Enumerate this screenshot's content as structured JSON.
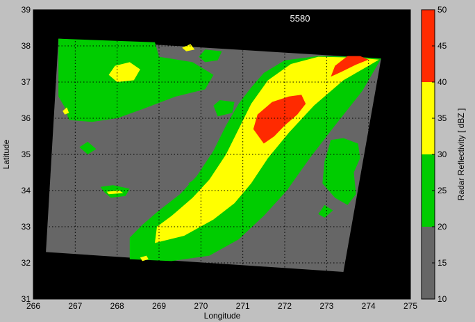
{
  "figure": {
    "background": "#c0c0c0"
  },
  "chart_data": {
    "type": "heatmap",
    "title": "5580",
    "xlabel": "Longitude",
    "ylabel": "Latitude",
    "xlim": [
      266,
      275
    ],
    "ylim": [
      31,
      39
    ],
    "xticks": [
      "266",
      "267",
      "268",
      "269",
      "270",
      "271",
      "272",
      "273",
      "274",
      "275"
    ],
    "yticks": [
      "31",
      "32",
      "33",
      "34",
      "35",
      "36",
      "37",
      "38",
      "39"
    ],
    "grid": true,
    "plot_background": "#000000",
    "domain_color": "#666666",
    "domain_corners": [
      [
        266.6,
        38.2
      ],
      [
        274.3,
        37.65
      ],
      [
        273.4,
        31.75
      ],
      [
        266.3,
        32.3
      ]
    ],
    "levels": [
      {
        "range": [
          10,
          20
        ],
        "color": "#666666"
      },
      {
        "range": [
          20,
          30
        ],
        "color": "#00cc00"
      },
      {
        "range": [
          30,
          40
        ],
        "color": "#ffff00"
      },
      {
        "range": [
          40,
          50
        ],
        "color": "#ff2a00"
      }
    ],
    "colorbar": {
      "label": "Radar Reflectivity  [ dBZ ]",
      "ticks": [
        "10",
        "15",
        "20",
        "25",
        "30",
        "35",
        "40",
        "45",
        "50"
      ],
      "range": [
        10,
        50
      ]
    },
    "regions": [
      {
        "level": 20,
        "points": [
          [
            266.6,
            38.2
          ],
          [
            268.9,
            38.1
          ],
          [
            269.0,
            37.7
          ],
          [
            269.8,
            37.55
          ],
          [
            270.3,
            37.2
          ],
          [
            270.1,
            36.8
          ],
          [
            269.4,
            36.6
          ],
          [
            268.6,
            36.25
          ],
          [
            268.0,
            36.0
          ],
          [
            267.4,
            35.9
          ],
          [
            266.85,
            35.95
          ],
          [
            266.75,
            36.3
          ],
          [
            266.6,
            36.6
          ]
        ]
      },
      {
        "level": 20,
        "points": [
          [
            274.3,
            37.65
          ],
          [
            273.7,
            37.7
          ],
          [
            272.8,
            37.72
          ],
          [
            272.0,
            37.6
          ],
          [
            271.5,
            37.25
          ],
          [
            271.2,
            36.85
          ],
          [
            270.9,
            36.4
          ],
          [
            270.6,
            35.8
          ],
          [
            270.3,
            35.1
          ],
          [
            269.9,
            34.4
          ],
          [
            269.5,
            33.9
          ],
          [
            269.0,
            33.45
          ],
          [
            268.6,
            33.05
          ],
          [
            268.3,
            32.7
          ],
          [
            268.3,
            32.1
          ],
          [
            269.3,
            32.05
          ],
          [
            270.2,
            32.2
          ],
          [
            270.9,
            32.65
          ],
          [
            271.5,
            33.3
          ],
          [
            272.05,
            34.0
          ],
          [
            272.6,
            34.9
          ],
          [
            273.2,
            35.8
          ],
          [
            273.85,
            36.75
          ]
        ]
      },
      {
        "level": 30,
        "points": [
          [
            274.25,
            37.62
          ],
          [
            273.6,
            37.68
          ],
          [
            272.8,
            37.7
          ],
          [
            272.15,
            37.5
          ],
          [
            271.6,
            37.05
          ],
          [
            271.2,
            36.4
          ],
          [
            270.9,
            35.7
          ],
          [
            270.6,
            35.0
          ],
          [
            270.2,
            34.3
          ],
          [
            269.8,
            33.8
          ],
          [
            269.3,
            33.3
          ],
          [
            268.95,
            33.0
          ],
          [
            268.9,
            32.55
          ],
          [
            269.6,
            32.75
          ],
          [
            270.3,
            33.2
          ],
          [
            270.8,
            33.65
          ],
          [
            271.2,
            34.2
          ],
          [
            271.6,
            34.9
          ],
          [
            272.1,
            35.6
          ],
          [
            272.7,
            36.35
          ],
          [
            273.4,
            37.05
          ],
          [
            274.0,
            37.45
          ]
        ]
      },
      {
        "level": 40,
        "points": [
          [
            271.5,
            35.3
          ],
          [
            271.25,
            35.7
          ],
          [
            271.35,
            36.1
          ],
          [
            271.7,
            36.45
          ],
          [
            272.1,
            36.6
          ],
          [
            272.4,
            36.65
          ],
          [
            272.5,
            36.4
          ],
          [
            272.3,
            36.1
          ],
          [
            272.0,
            35.8
          ],
          [
            271.75,
            35.5
          ]
        ]
      },
      {
        "level": 40,
        "points": [
          [
            273.1,
            37.15
          ],
          [
            273.2,
            37.45
          ],
          [
            273.5,
            37.72
          ],
          [
            273.8,
            37.72
          ],
          [
            274.0,
            37.62
          ],
          [
            273.7,
            37.48
          ],
          [
            273.35,
            37.28
          ]
        ]
      },
      {
        "level": 30,
        "points": [
          [
            268.0,
            37.0
          ],
          [
            267.8,
            37.2
          ],
          [
            267.95,
            37.45
          ],
          [
            268.3,
            37.55
          ],
          [
            268.55,
            37.35
          ],
          [
            268.4,
            37.05
          ]
        ]
      },
      {
        "level": 20,
        "points": [
          [
            273.1,
            35.4
          ],
          [
            272.95,
            34.8
          ],
          [
            272.9,
            34.2
          ],
          [
            273.2,
            33.8
          ],
          [
            273.5,
            33.6
          ],
          [
            273.7,
            33.9
          ],
          [
            273.65,
            34.5
          ],
          [
            273.8,
            34.9
          ],
          [
            273.75,
            35.3
          ],
          [
            273.4,
            35.45
          ]
        ]
      },
      {
        "level": 20,
        "points": [
          [
            270.3,
            36.35
          ],
          [
            270.45,
            36.5
          ],
          [
            270.8,
            36.45
          ],
          [
            270.75,
            36.15
          ],
          [
            270.4,
            36.05
          ]
        ]
      },
      {
        "level": 20,
        "points": [
          [
            267.7,
            33.95
          ],
          [
            267.6,
            34.1
          ],
          [
            267.9,
            34.15
          ],
          [
            268.3,
            34.05
          ],
          [
            268.2,
            33.85
          ],
          [
            267.85,
            33.8
          ]
        ]
      },
      {
        "level": 30,
        "points": [
          [
            267.75,
            33.97
          ],
          [
            268.05,
            34.0
          ],
          [
            268.15,
            33.93
          ],
          [
            267.8,
            33.9
          ]
        ]
      },
      {
        "level": 20,
        "points": [
          [
            269.95,
            37.7
          ],
          [
            270.1,
            37.9
          ],
          [
            270.5,
            37.85
          ],
          [
            270.4,
            37.6
          ],
          [
            270.1,
            37.55
          ]
        ]
      },
      {
        "level": 20,
        "points": [
          [
            269.7,
            34.2
          ],
          [
            269.9,
            34.35
          ],
          [
            270.05,
            34.2
          ],
          [
            269.8,
            34.05
          ]
        ]
      },
      {
        "level": 20,
        "points": [
          [
            267.1,
            35.2
          ],
          [
            267.3,
            35.35
          ],
          [
            267.5,
            35.15
          ],
          [
            267.3,
            35.0
          ]
        ]
      },
      {
        "level": 20,
        "points": [
          [
            272.8,
            33.35
          ],
          [
            272.95,
            33.6
          ],
          [
            273.15,
            33.45
          ],
          [
            272.95,
            33.25
          ]
        ]
      },
      {
        "level": 20,
        "points": [
          [
            269.1,
            32.15
          ],
          [
            269.4,
            32.4
          ],
          [
            269.7,
            32.3
          ],
          [
            269.5,
            32.1
          ]
        ]
      },
      {
        "level": 30,
        "points": [
          [
            269.2,
            33.15
          ],
          [
            269.35,
            33.25
          ],
          [
            269.5,
            33.1
          ]
        ]
      },
      {
        "level": 30,
        "points": [
          [
            268.55,
            32.15
          ],
          [
            268.7,
            32.2
          ],
          [
            268.75,
            32.1
          ],
          [
            268.6,
            32.05
          ]
        ]
      },
      {
        "level": 30,
        "points": [
          [
            269.55,
            37.95
          ],
          [
            269.75,
            38.05
          ],
          [
            269.85,
            37.9
          ],
          [
            269.65,
            37.85
          ]
        ]
      },
      {
        "level": 30,
        "points": [
          [
            266.7,
            36.2
          ],
          [
            266.8,
            36.3
          ],
          [
            266.85,
            36.15
          ],
          [
            266.75,
            36.1
          ]
        ]
      }
    ]
  }
}
